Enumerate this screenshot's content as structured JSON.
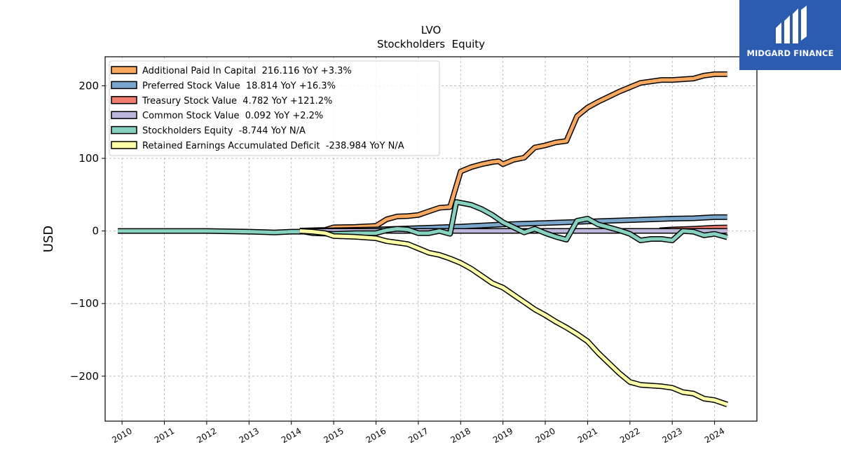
{
  "chart_data": {
    "type": "line",
    "title": "LVO",
    "subtitle": "Stockholders  Equity",
    "ylabel": "USD",
    "xlim": [
      2009.6,
      2025.0
    ],
    "ylim": [
      -262,
      240
    ],
    "grid": true,
    "legend_position": "top-left",
    "x_ticks": [
      2010,
      2011,
      2012,
      2013,
      2014,
      2015,
      2016,
      2017,
      2018,
      2019,
      2020,
      2021,
      2022,
      2023,
      2024
    ],
    "y_ticks": [
      200,
      100,
      0,
      -100,
      -200
    ],
    "y_tick_labels": [
      "200",
      "100",
      "0",
      "−100",
      "−200"
    ],
    "series": [
      {
        "name": "Additional Paid In Capital",
        "legend": "Additional Paid In Capital  216.116 YoY +3.3%",
        "color": "#f8a85f",
        "points": [
          [
            2014.2,
            0.5
          ],
          [
            2014.5,
            1
          ],
          [
            2014.8,
            1.5
          ],
          [
            2015.0,
            5
          ],
          [
            2015.5,
            5.5
          ],
          [
            2016.0,
            7
          ],
          [
            2016.25,
            16
          ],
          [
            2016.5,
            20
          ],
          [
            2016.75,
            20.5
          ],
          [
            2017.0,
            22
          ],
          [
            2017.25,
            27
          ],
          [
            2017.5,
            32
          ],
          [
            2017.75,
            33
          ],
          [
            2018.0,
            82
          ],
          [
            2018.25,
            88
          ],
          [
            2018.5,
            92
          ],
          [
            2018.75,
            95
          ],
          [
            2018.9,
            96
          ],
          [
            2019.0,
            92
          ],
          [
            2019.25,
            98
          ],
          [
            2019.5,
            101
          ],
          [
            2019.75,
            115
          ],
          [
            2020.0,
            118
          ],
          [
            2020.25,
            122
          ],
          [
            2020.5,
            124
          ],
          [
            2020.75,
            158
          ],
          [
            2021.0,
            170
          ],
          [
            2021.25,
            178
          ],
          [
            2021.5,
            185
          ],
          [
            2021.75,
            192
          ],
          [
            2022.0,
            198
          ],
          [
            2022.25,
            204
          ],
          [
            2022.5,
            206
          ],
          [
            2022.75,
            208
          ],
          [
            2023.0,
            208
          ],
          [
            2023.25,
            209
          ],
          [
            2023.5,
            210
          ],
          [
            2023.75,
            214
          ],
          [
            2024.0,
            216
          ],
          [
            2024.3,
            216
          ]
        ]
      },
      {
        "name": "Preferred Stock Value",
        "legend": "Preferred Stock Value  18.814 YoY +16.3%",
        "color": "#7aa6cc",
        "points": [
          [
            2014.2,
            0
          ],
          [
            2015.0,
            1
          ],
          [
            2016.0,
            2
          ],
          [
            2017.0,
            4
          ],
          [
            2018.0,
            6
          ],
          [
            2019.0,
            9
          ],
          [
            2020.0,
            11
          ],
          [
            2021.0,
            13
          ],
          [
            2022.0,
            15
          ],
          [
            2023.0,
            17
          ],
          [
            2023.5,
            17.5
          ],
          [
            2024.0,
            19
          ],
          [
            2024.3,
            19
          ]
        ]
      },
      {
        "name": "Treasury Stock Value",
        "legend": "Treasury Stock Value  4.782 YoY +121.2%",
        "color": "#f07d72",
        "points": [
          [
            2022.7,
            1
          ],
          [
            2023.0,
            2
          ],
          [
            2023.5,
            3
          ],
          [
            2024.0,
            4.5
          ],
          [
            2024.3,
            4.8
          ]
        ]
      },
      {
        "name": "Common Stock Value",
        "legend": "Common Stock Value  0.092 YoY +2.2%",
        "color": "#bcb6da",
        "points": [
          [
            2014.2,
            0.05
          ],
          [
            2016.0,
            0.06
          ],
          [
            2018.0,
            0.07
          ],
          [
            2020.0,
            0.08
          ],
          [
            2022.0,
            0.09
          ],
          [
            2024.3,
            0.09
          ]
        ]
      },
      {
        "name": "Stockholders Equity",
        "legend": "Stockholders Equity  -8.744 YoY N/A",
        "color": "#86d1c0",
        "points": [
          [
            2009.9,
            0
          ],
          [
            2010.5,
            0
          ],
          [
            2011.0,
            0
          ],
          [
            2012.0,
            0
          ],
          [
            2013.0,
            -1
          ],
          [
            2013.6,
            -2
          ],
          [
            2014.0,
            -1
          ],
          [
            2014.3,
            -1
          ],
          [
            2014.5,
            -3
          ],
          [
            2015.0,
            -4
          ],
          [
            2015.5,
            -3
          ],
          [
            2016.0,
            -3
          ],
          [
            2016.25,
            1
          ],
          [
            2016.5,
            3
          ],
          [
            2016.75,
            2
          ],
          [
            2017.0,
            -3
          ],
          [
            2017.25,
            -3
          ],
          [
            2017.5,
            0
          ],
          [
            2017.75,
            -4
          ],
          [
            2017.9,
            40
          ],
          [
            2018.25,
            36
          ],
          [
            2018.5,
            30
          ],
          [
            2018.75,
            22
          ],
          [
            2019.0,
            12
          ],
          [
            2019.25,
            5
          ],
          [
            2019.5,
            -2
          ],
          [
            2019.75,
            3
          ],
          [
            2020.0,
            -3
          ],
          [
            2020.25,
            -8
          ],
          [
            2020.5,
            -12
          ],
          [
            2020.75,
            14
          ],
          [
            2021.0,
            17
          ],
          [
            2021.25,
            9
          ],
          [
            2021.5,
            5
          ],
          [
            2021.75,
            1
          ],
          [
            2022.0,
            -4
          ],
          [
            2022.25,
            -13
          ],
          [
            2022.5,
            -11
          ],
          [
            2022.75,
            -11
          ],
          [
            2023.0,
            -13
          ],
          [
            2023.25,
            0
          ],
          [
            2023.5,
            -1
          ],
          [
            2023.75,
            -6
          ],
          [
            2024.0,
            -4
          ],
          [
            2024.3,
            -8.7
          ]
        ]
      },
      {
        "name": "Retained Earnings Accumulated Deficit",
        "legend": "Retained Earnings Accumulated Deficit  -238.984 YoY N/A",
        "color": "#ffffa8",
        "points": [
          [
            2014.2,
            0
          ],
          [
            2014.5,
            -1
          ],
          [
            2014.8,
            -3
          ],
          [
            2015.0,
            -7
          ],
          [
            2015.5,
            -8
          ],
          [
            2016.0,
            -10
          ],
          [
            2016.25,
            -14
          ],
          [
            2016.5,
            -16
          ],
          [
            2016.75,
            -18
          ],
          [
            2017.0,
            -24
          ],
          [
            2017.25,
            -30
          ],
          [
            2017.5,
            -33
          ],
          [
            2017.75,
            -38
          ],
          [
            2018.0,
            -44
          ],
          [
            2018.25,
            -52
          ],
          [
            2018.5,
            -62
          ],
          [
            2018.75,
            -72
          ],
          [
            2019.0,
            -78
          ],
          [
            2019.25,
            -88
          ],
          [
            2019.5,
            -98
          ],
          [
            2019.75,
            -108
          ],
          [
            2020.0,
            -116
          ],
          [
            2020.25,
            -125
          ],
          [
            2020.5,
            -133
          ],
          [
            2020.75,
            -142
          ],
          [
            2021.0,
            -152
          ],
          [
            2021.25,
            -168
          ],
          [
            2021.5,
            -182
          ],
          [
            2021.75,
            -196
          ],
          [
            2022.0,
            -208
          ],
          [
            2022.25,
            -212
          ],
          [
            2022.5,
            -213
          ],
          [
            2022.75,
            -214
          ],
          [
            2023.0,
            -216
          ],
          [
            2023.25,
            -222
          ],
          [
            2023.5,
            -224
          ],
          [
            2023.75,
            -231
          ],
          [
            2024.0,
            -233
          ],
          [
            2024.3,
            -239
          ]
        ]
      }
    ]
  },
  "logo": {
    "brand": "MIDGARD FINANCE"
  }
}
